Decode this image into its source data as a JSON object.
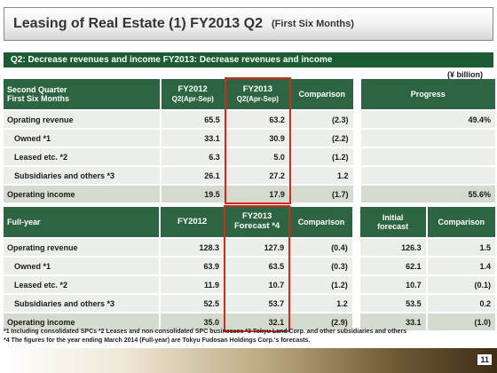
{
  "title": {
    "main": "Leasing of Real Estate (1) FY2013 Q2",
    "sub": "(First Six Months)"
  },
  "summary_bar": "Q2: Decrease revenues and income FY2013: Decrease revenues and income",
  "unit_label": "(¥ billion)",
  "highlight_color": "#d02b20",
  "header_color": "#2d6542",
  "q2_table": {
    "header": {
      "label_line1": "Second Quarter",
      "label_line2": "First Six Months",
      "fy2012_line1": "FY2012",
      "fy2012_line2": "Q2(Apr-Sep)",
      "fy2013_line1": "FY2013",
      "fy2013_line2": "Q2(Apr-Sep)",
      "comparison": "Comparison",
      "progress": "Progress"
    },
    "rows": [
      {
        "label": "Oprating revenue",
        "fy2012": "65.5",
        "fy2013": "63.2",
        "comparison": "(2.3)",
        "progress": "49.4%"
      },
      {
        "label": "Owned *1",
        "fy2012": "33.1",
        "fy2013": "30.9",
        "comparison": "(2.2)",
        "progress": ""
      },
      {
        "label": "Leased etc. *2",
        "fy2012": "6.3",
        "fy2013": "5.0",
        "comparison": "(1.2)",
        "progress": ""
      },
      {
        "label": "Subsidiaries and others *3",
        "fy2012": "26.1",
        "fy2013": "27.2",
        "comparison": "1.2",
        "progress": ""
      },
      {
        "label": "Operating income",
        "fy2012": "19.5",
        "fy2013": "17.9",
        "comparison": "(1.7)",
        "progress": "55.6%"
      }
    ]
  },
  "full_year_table": {
    "header": {
      "label": "Full-year",
      "fy2012": "FY2012",
      "fy2013_line1": "FY2013",
      "fy2013_line2": "Forecast *4",
      "comparison": "Comparison",
      "initial_line1": "Initial",
      "initial_line2": "forecast",
      "comparison2": "Comparison"
    },
    "rows": [
      {
        "label": "Operating revenue",
        "fy2012": "128.3",
        "fy2013": "127.9",
        "comparison": "(0.4)",
        "initial": "126.3",
        "comparison2": "1.5"
      },
      {
        "label": "Owned *1",
        "fy2012": "63.9",
        "fy2013": "63.5",
        "comparison": "(0.3)",
        "initial": "62.1",
        "comparison2": "1.4"
      },
      {
        "label": "Leased etc. *2",
        "fy2012": "11.9",
        "fy2013": "10.7",
        "comparison": "(1.2)",
        "initial": "10.7",
        "comparison2": "(0.1)"
      },
      {
        "label": "Subsidiaries and others *3",
        "fy2012": "52.5",
        "fy2013": "53.7",
        "comparison": "1.2",
        "initial": "53.5",
        "comparison2": "0.2"
      },
      {
        "label": "Operating income",
        "fy2012": "35.0",
        "fy2013": "32.1",
        "comparison": "(2.9)",
        "initial": "33.1",
        "comparison2": "(1.0)"
      }
    ]
  },
  "footnotes": [
    "*1 Including consolidated SPCs *2 Leases and non-consolidated SPC businesses *3 Tokyu Land Corp. and other subsidiaries and others",
    "*4 The figures for the year ending March 2014 (Full-year) are Tokyu Fudosan Holdings Corp.'s forecasts."
  ],
  "page_number": "11"
}
